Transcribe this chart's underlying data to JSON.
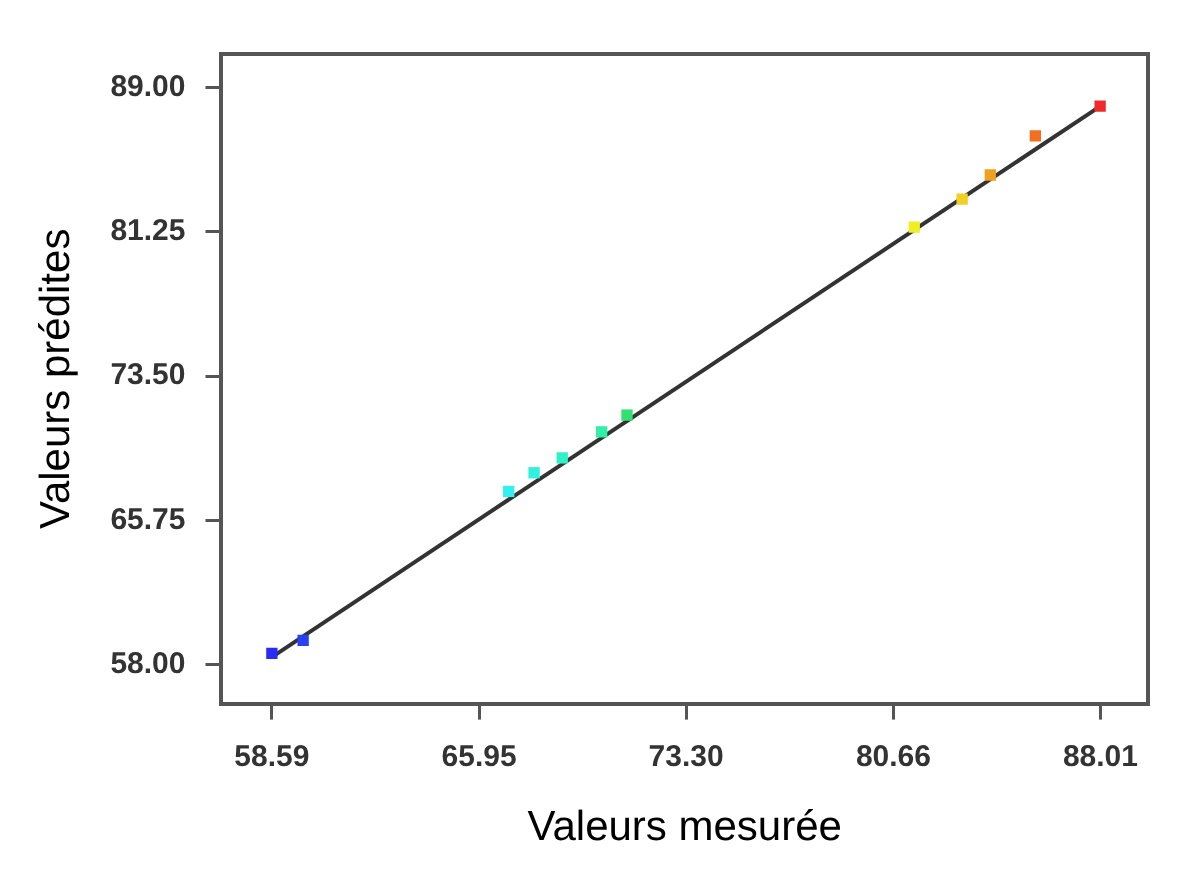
{
  "chart_data": {
    "type": "scatter",
    "xlabel": "Valeurs mesurée",
    "ylabel": "Valeurs prédites",
    "xlim": [
      56.8,
      89.7
    ],
    "ylim": [
      55.9,
      90.8
    ],
    "xticks": [
      {
        "value": 58.59,
        "label": "58.59"
      },
      {
        "value": 65.95,
        "label": "65.95"
      },
      {
        "value": 73.3,
        "label": "73.30"
      },
      {
        "value": 80.66,
        "label": "80.66"
      },
      {
        "value": 88.01,
        "label": "88.01"
      }
    ],
    "yticks": [
      {
        "value": 58,
        "label": "58.00"
      },
      {
        "value": 65.75,
        "label": "65.75"
      },
      {
        "value": 73.5,
        "label": "73.50"
      },
      {
        "value": 81.25,
        "label": "81.25"
      },
      {
        "value": 89,
        "label": "89.00"
      }
    ],
    "grid": false,
    "legend": false,
    "marker": "square",
    "series": [
      {
        "type": "scatter",
        "x": [
          58.59,
          59.7,
          67.0,
          67.9,
          68.9,
          70.3,
          71.2,
          81.4,
          83.1,
          84.1,
          85.7,
          88.0
        ],
        "values": [
          58.6,
          59.3,
          67.3,
          68.3,
          69.1,
          70.5,
          71.4,
          81.5,
          83.0,
          84.3,
          86.4,
          88.0
        ],
        "colors": [
          "#2a2af5",
          "#2a40f5",
          "#30f0f0",
          "#30f0e0",
          "#30f0c8",
          "#30f0a8",
          "#30e070",
          "#f0f020",
          "#f0d020",
          "#f0a020",
          "#f07020",
          "#f02a2a"
        ]
      },
      {
        "type": "line",
        "color": "#333333",
        "x": [
          58.59,
          88.01
        ],
        "values": [
          58.4,
          88.0
        ],
        "marker": "none"
      }
    ]
  }
}
